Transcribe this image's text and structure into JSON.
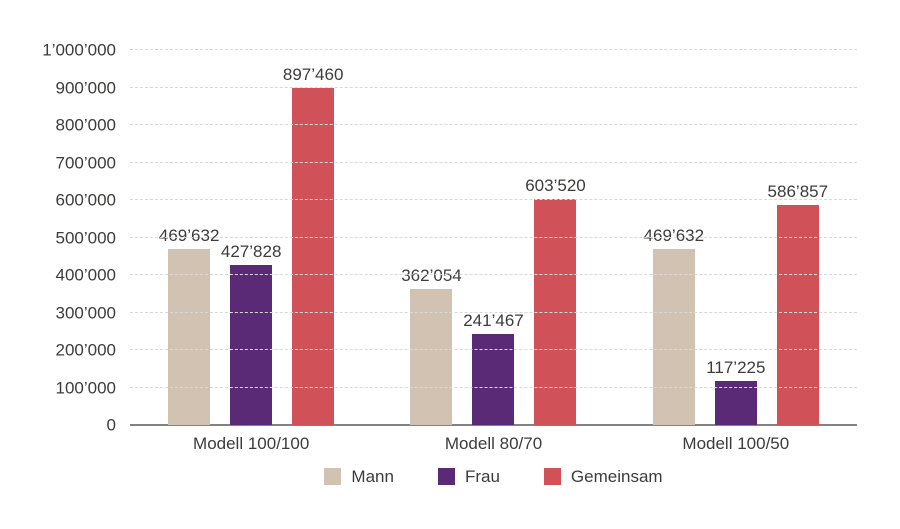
{
  "chart_data": {
    "type": "bar",
    "title": "",
    "categories": [
      "Modell 100/100",
      "Modell 80/70",
      "Modell 100/50"
    ],
    "series": [
      {
        "name": "Mann",
        "color": "#d2c2b1",
        "values": [
          469632,
          362054,
          469632
        ],
        "value_labels": [
          "469’632",
          "362’054",
          "469’632"
        ]
      },
      {
        "name": "Frau",
        "color": "#5b2a76",
        "values": [
          427828,
          241467,
          117225
        ],
        "value_labels": [
          "427’828",
          "241’467",
          "117’225"
        ]
      },
      {
        "name": "Gemeinsam",
        "color": "#d05158",
        "values": [
          897460,
          603520,
          586857
        ],
        "value_labels": [
          "897’460",
          "603’520",
          "586’857"
        ]
      }
    ],
    "xlabel": "",
    "ylabel": "",
    "ylim": [
      0,
      1000000
    ],
    "ytick_step": 100000,
    "ytick_labels": [
      "0",
      "100’000",
      "200’000",
      "300’000",
      "400’000",
      "500’000",
      "600’000",
      "700’000",
      "800’000",
      "900’000",
      "1’000’000"
    ],
    "grid": true,
    "gridline_style": "dashed",
    "legend_position": "bottom",
    "legend_entries": [
      "Mann",
      "Frau",
      "Gemeinsam"
    ]
  },
  "colors": {
    "background": "#ffffff",
    "text": "#3c3c3b",
    "axis_line": "#828282",
    "gridline": "#d9d9d9",
    "series_mann": "#d2c2b1",
    "series_frau": "#5b2a76",
    "series_gemeinsam": "#d05158"
  }
}
